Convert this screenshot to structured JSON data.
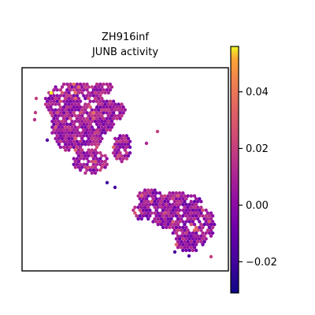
{
  "chart_data": {
    "type": "scatter",
    "title_line1": "ZH916inf",
    "title_line2": "JUNB activity",
    "xlabel": "",
    "ylabel": "",
    "axis_ticks_visible": false,
    "colorbar": {
      "colormap": "plasma",
      "range": [
        -0.031,
        0.056
      ],
      "ticks": [
        -0.02,
        0.0,
        0.02,
        0.04
      ],
      "tick_labels": [
        "−0.02",
        "0.00",
        "0.02",
        "0.04"
      ]
    },
    "clusters": [
      {
        "name": "upper-left tissue region",
        "center": [
          0.33,
          0.64
        ],
        "mean_value": 0.006
      },
      {
        "name": "lower-right tissue region",
        "center": [
          0.77,
          0.28
        ],
        "mean_value": 0.003
      }
    ],
    "colors": {
      "frame": "#000000",
      "background": "#ffffff"
    }
  }
}
